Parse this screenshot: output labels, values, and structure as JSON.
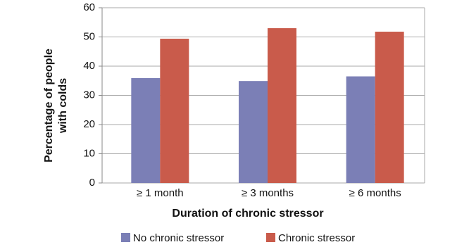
{
  "chart_data": {
    "type": "bar",
    "y_label": [
      "Percentage of people",
      "with colds"
    ],
    "x_label": "Duration of chronic stressor",
    "categories": [
      "≥ 1 month",
      "≥ 3 months",
      "≥ 6 months"
    ],
    "series": [
      {
        "name": "No chronic stressor",
        "color": "#7b7fb6",
        "values": [
          35.9,
          34.9,
          36.5
        ]
      },
      {
        "name": "Chronic stressor",
        "color": "#c95b4b",
        "values": [
          49.4,
          53.0,
          51.8
        ]
      }
    ],
    "ylim": [
      0,
      60
    ],
    "yticks": [
      0,
      10,
      20,
      30,
      40,
      50,
      60
    ],
    "grid": true,
    "legend": "bottom"
  }
}
